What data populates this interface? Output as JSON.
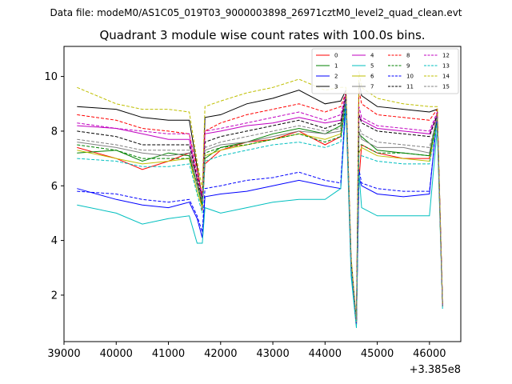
{
  "chart_data": {
    "type": "line",
    "suptitle": "Data file: modeM0/AS1C05_019T03_9000003898_26971cztM0_level2_quad_clean.evt",
    "title": "Quadrant 3 module wise count rates with 100.0s bins.",
    "xlabel": "",
    "ylabel": "",
    "x_offset_label": "+3.385e8",
    "xlim": [
      39000,
      46600
    ],
    "ylim": [
      0.3,
      11.1
    ],
    "x_ticks": [
      39000,
      40000,
      41000,
      42000,
      43000,
      44000,
      45000,
      46000
    ],
    "x_tick_labels": [
      "39000",
      "40000",
      "41000",
      "42000",
      "43000",
      "44000",
      "45000",
      "46000"
    ],
    "y_ticks": [
      2,
      4,
      6,
      8,
      10
    ],
    "y_tick_labels": [
      "2",
      "4",
      "6",
      "8",
      "10"
    ],
    "legend_position": "top-right",
    "x": [
      39250,
      40000,
      40500,
      41000,
      41400,
      41550,
      41650,
      41700,
      42000,
      42500,
      43000,
      43500,
      44000,
      44300,
      44400,
      44500,
      44600,
      44650,
      44700,
      45000,
      45500,
      46000,
      46150,
      46250
    ],
    "series": [
      {
        "name": "0",
        "color": "#ff0000",
        "dash": "solid",
        "values": [
          7.4,
          7.0,
          6.6,
          6.9,
          7.2,
          6.3,
          5.1,
          6.8,
          7.3,
          7.6,
          7.7,
          8.0,
          7.5,
          7.8,
          9.0,
          3.2,
          1.0,
          6.2,
          7.5,
          7.2,
          7.0,
          7.0,
          8.7,
          1.6
        ]
      },
      {
        "name": "1",
        "color": "#008000",
        "dash": "solid",
        "values": [
          7.2,
          7.3,
          6.9,
          7.2,
          7.1,
          6.0,
          5.3,
          7.0,
          7.4,
          7.6,
          7.9,
          8.1,
          7.9,
          8.2,
          9.2,
          3.0,
          0.9,
          7.9,
          7.8,
          7.3,
          7.2,
          7.1,
          8.5,
          1.6
        ]
      },
      {
        "name": "2",
        "color": "#0000ff",
        "dash": "solid",
        "values": [
          5.9,
          5.5,
          5.3,
          5.2,
          5.4,
          4.8,
          4.1,
          5.6,
          5.7,
          5.8,
          6.0,
          6.2,
          6.0,
          5.9,
          9.3,
          3.0,
          0.9,
          6.3,
          6.0,
          5.7,
          5.6,
          5.7,
          8.6,
          1.6
        ]
      },
      {
        "name": "3",
        "color": "#000000",
        "dash": "solid",
        "values": [
          8.9,
          8.8,
          8.5,
          8.4,
          8.4,
          6.7,
          5.5,
          8.5,
          8.6,
          9.0,
          9.2,
          9.5,
          9.0,
          9.1,
          9.5,
          3.3,
          1.0,
          9.8,
          9.3,
          8.9,
          8.8,
          8.7,
          8.8,
          1.7
        ]
      },
      {
        "name": "4",
        "color": "#c000c0",
        "dash": "solid",
        "values": [
          8.2,
          8.1,
          7.9,
          7.7,
          7.7,
          6.2,
          5.5,
          7.9,
          8.0,
          8.2,
          8.3,
          8.5,
          8.3,
          8.4,
          9.3,
          3.2,
          1.0,
          8.6,
          8.4,
          8.1,
          8.0,
          7.9,
          8.6,
          1.6
        ]
      },
      {
        "name": "5",
        "color": "#00bfbf",
        "dash": "solid",
        "values": [
          5.3,
          5.0,
          4.6,
          4.8,
          4.9,
          3.9,
          3.9,
          5.2,
          5.0,
          5.2,
          5.4,
          5.5,
          5.5,
          5.9,
          8.9,
          2.7,
          0.8,
          6.5,
          5.2,
          4.9,
          4.9,
          4.9,
          8.1,
          1.5
        ]
      },
      {
        "name": "6",
        "color": "#bfbf00",
        "dash": "solid",
        "values": [
          7.3,
          7.0,
          6.8,
          6.9,
          7.0,
          5.8,
          5.2,
          7.1,
          7.3,
          7.5,
          7.7,
          7.9,
          7.7,
          7.9,
          9.1,
          3.1,
          0.9,
          7.2,
          7.4,
          7.1,
          7.0,
          6.9,
          8.3,
          1.6
        ]
      },
      {
        "name": "7",
        "color": "#808080",
        "dash": "solid",
        "values": [
          7.6,
          7.4,
          7.2,
          7.1,
          7.2,
          6.0,
          5.4,
          7.3,
          7.5,
          7.6,
          7.8,
          8.0,
          7.9,
          8.0,
          9.3,
          3.2,
          1.0,
          8.0,
          7.7,
          7.4,
          7.4,
          7.2,
          8.6,
          1.6
        ]
      },
      {
        "name": "8",
        "color": "#ff0000",
        "dash": "dashed",
        "values": [
          8.6,
          8.4,
          8.1,
          8.0,
          7.9,
          6.6,
          5.6,
          8.0,
          8.3,
          8.6,
          8.8,
          9.0,
          8.7,
          8.9,
          9.4,
          3.3,
          1.0,
          9.5,
          9.0,
          8.6,
          8.5,
          8.4,
          8.8,
          1.7
        ]
      },
      {
        "name": "9",
        "color": "#008000",
        "dash": "dashed",
        "values": [
          7.5,
          7.3,
          7.0,
          7.0,
          7.0,
          6.1,
          5.3,
          7.2,
          7.4,
          7.5,
          7.7,
          7.9,
          7.6,
          7.8,
          9.1,
          3.1,
          0.9,
          7.5,
          7.5,
          7.2,
          7.2,
          7.1,
          8.4,
          1.6
        ]
      },
      {
        "name": "10",
        "color": "#0000ff",
        "dash": "dashed",
        "values": [
          5.8,
          5.7,
          5.5,
          5.4,
          5.5,
          4.9,
          4.3,
          5.9,
          6.0,
          6.2,
          6.3,
          6.5,
          6.2,
          6.1,
          9.2,
          3.0,
          0.9,
          6.6,
          6.1,
          5.9,
          5.8,
          5.8,
          8.5,
          1.6
        ]
      },
      {
        "name": "11",
        "color": "#000000",
        "dash": "dashed",
        "values": [
          8.0,
          7.8,
          7.5,
          7.5,
          7.5,
          6.3,
          5.5,
          7.6,
          7.8,
          8.0,
          8.2,
          8.4,
          8.1,
          8.3,
          9.3,
          3.2,
          1.0,
          8.6,
          8.3,
          8.0,
          7.9,
          7.8,
          8.6,
          1.6
        ]
      },
      {
        "name": "12",
        "color": "#c000c0",
        "dash": "dashed",
        "values": [
          8.3,
          8.1,
          8.0,
          7.9,
          7.9,
          6.4,
          5.6,
          8.0,
          8.1,
          8.3,
          8.5,
          8.7,
          8.4,
          8.6,
          9.4,
          3.2,
          1.0,
          8.9,
          8.5,
          8.2,
          8.1,
          8.0,
          8.7,
          1.6
        ]
      },
      {
        "name": "13",
        "color": "#00bfbf",
        "dash": "dashed",
        "values": [
          7.0,
          6.9,
          6.7,
          6.7,
          6.8,
          5.7,
          5.0,
          6.9,
          7.1,
          7.3,
          7.5,
          7.6,
          7.4,
          7.6,
          9.0,
          3.0,
          0.9,
          7.1,
          7.1,
          6.9,
          6.8,
          6.8,
          8.3,
          1.6
        ]
      },
      {
        "name": "14",
        "color": "#bfbf00",
        "dash": "dashed",
        "values": [
          9.6,
          9.0,
          8.8,
          8.8,
          8.7,
          6.9,
          5.9,
          8.9,
          9.1,
          9.4,
          9.6,
          9.9,
          9.5,
          9.6,
          9.6,
          3.4,
          1.1,
          10.2,
          9.6,
          9.2,
          9.0,
          8.9,
          8.9,
          1.7
        ]
      },
      {
        "name": "15",
        "color": "#808080",
        "dash": "dashed",
        "values": [
          7.7,
          7.5,
          7.3,
          7.3,
          7.3,
          6.2,
          5.4,
          7.4,
          7.6,
          7.8,
          8.0,
          8.2,
          8.0,
          8.1,
          9.2,
          3.1,
          1.0,
          8.2,
          7.9,
          7.6,
          7.5,
          7.4,
          8.5,
          1.6
        ]
      }
    ]
  }
}
